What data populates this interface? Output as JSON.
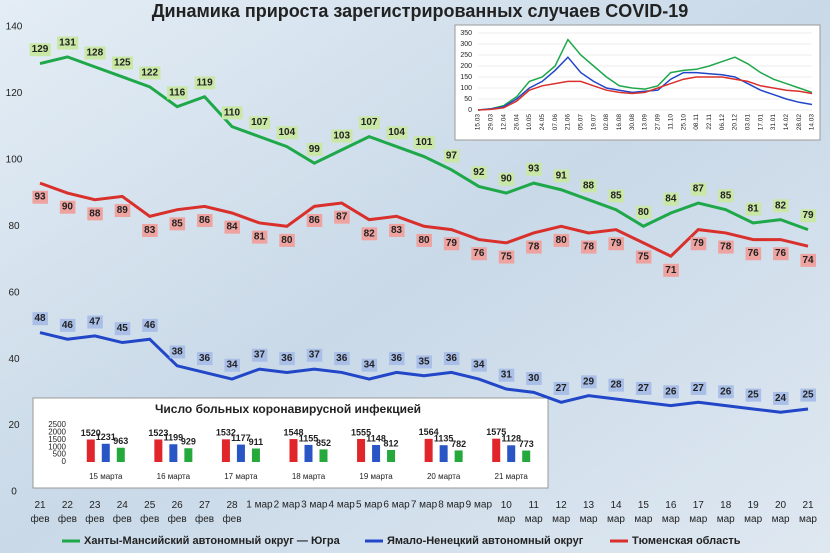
{
  "chart_data": [
    {
      "type": "line",
      "title": "Динамика прироста зарегистрированных случаев COVID-19",
      "categories": [
        "21 фев",
        "22 фев",
        "23 фев",
        "24 фев",
        "25 фев",
        "26 фев",
        "27 фев",
        "28 фев",
        "1 мар",
        "2 мар",
        "3 мар",
        "4 мар",
        "5 мар",
        "6 мар",
        "7 мар",
        "8 мар",
        "9 мар",
        "10 мар",
        "11 мар",
        "12 мар",
        "13 мар",
        "14 мар",
        "15 мар",
        "16 мар",
        "17 мар",
        "18 мар",
        "19 мар",
        "20 мар",
        "21 мар"
      ],
      "series": [
        {
          "name": "Ханты-Мансийский автономный округ — Югра",
          "color": "#1ea84a",
          "label_color": "#c9e7a5",
          "values": [
            129,
            131,
            128,
            125,
            122,
            116,
            119,
            110,
            107,
            104,
            99,
            103,
            107,
            104,
            101,
            97,
            92,
            90,
            93,
            91,
            88,
            85,
            80,
            84,
            87,
            85,
            81,
            82,
            79
          ]
        },
        {
          "name": "Тюменская область",
          "color": "#d9302c",
          "label_color": "#eea3a0",
          "values": [
            93,
            90,
            88,
            89,
            83,
            85,
            86,
            84,
            81,
            80,
            86,
            87,
            82,
            83,
            80,
            79,
            76,
            75,
            78,
            80,
            78,
            79,
            75,
            71,
            79,
            78,
            76,
            76,
            74
          ]
        },
        {
          "name": "Ямало-Ненецкий автономный округ",
          "color": "#2146c7",
          "label_color": "#a9bfe8",
          "values": [
            48,
            46,
            47,
            45,
            46,
            38,
            36,
            34,
            37,
            36,
            37,
            36,
            34,
            36,
            35,
            36,
            34,
            31,
            30,
            27,
            29,
            28,
            27,
            26,
            27,
            26,
            25,
            24,
            25
          ]
        }
      ],
      "ylim": [
        0,
        140
      ],
      "yticks": [
        0,
        20,
        40,
        60,
        80,
        100,
        120,
        140
      ],
      "grid": false
    },
    {
      "type": "line",
      "categories": [
        "15.03",
        "29.03",
        "12.04",
        "26.04",
        "10.05",
        "24.05",
        "07.06",
        "21.06",
        "05.07",
        "19.07",
        "02.08",
        "16.08",
        "30.08",
        "13.09",
        "27.09",
        "11.10",
        "25.10",
        "08.11",
        "22.11",
        "06.12",
        "20.12",
        "03.01",
        "17.01",
        "31.01",
        "14.02",
        "28.02",
        "14.03"
      ],
      "series": [
        {
          "color": "#1ea84a",
          "values": [
            0,
            5,
            20,
            60,
            130,
            150,
            200,
            320,
            250,
            200,
            150,
            110,
            100,
            95,
            110,
            170,
            180,
            185,
            200,
            220,
            240,
            210,
            170,
            140,
            120,
            100,
            80
          ]
        },
        {
          "color": "#2146c7",
          "values": [
            0,
            5,
            15,
            50,
            100,
            130,
            180,
            240,
            170,
            130,
            100,
            90,
            80,
            85,
            90,
            140,
            170,
            170,
            165,
            160,
            150,
            120,
            90,
            70,
            50,
            35,
            25
          ]
        },
        {
          "color": "#d9302c",
          "values": [
            0,
            3,
            10,
            40,
            90,
            110,
            120,
            130,
            130,
            110,
            90,
            80,
            75,
            80,
            100,
            120,
            140,
            150,
            150,
            150,
            140,
            130,
            110,
            100,
            90,
            85,
            75
          ]
        }
      ],
      "ylim": [
        0,
        350
      ],
      "yticks": [
        0,
        50,
        100,
        150,
        200,
        250,
        300,
        350
      ],
      "grid": true
    },
    {
      "type": "bar",
      "title": "Число больных коронавирусной  инфекцией",
      "categories": [
        "15 марта",
        "16 марта",
        "17 марта",
        "18 марта",
        "19 марта",
        "20 марта",
        "21 марта"
      ],
      "series": [
        {
          "color": "#e0262a",
          "values": [
            1520,
            1523,
            1532,
            1548,
            1555,
            1564,
            1575
          ]
        },
        {
          "color": "#2a55c5",
          "values": [
            1231,
            1199,
            1177,
            1155,
            1148,
            1135,
            1128
          ]
        },
        {
          "color": "#25a83c",
          "values": [
            963,
            929,
            911,
            852,
            812,
            782,
            773
          ]
        }
      ],
      "ylim": [
        0,
        2500
      ],
      "yticks": [
        0,
        500,
        1000,
        1500,
        2000,
        2500
      ],
      "grid": false
    }
  ]
}
